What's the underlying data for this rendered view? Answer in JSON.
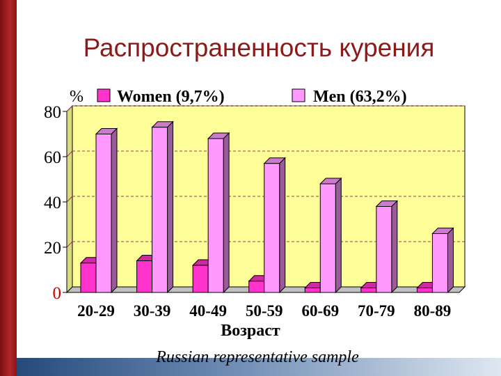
{
  "title": "Распространенность курения",
  "caption": "Russian representative sample",
  "colors": {
    "plot_bg": "#ffff99",
    "women": "#ff33cc",
    "men": "#ff99ff",
    "title": "#8b1a1a"
  },
  "chart_data": {
    "type": "bar",
    "title": "Распространенность курения",
    "xlabel": "Возраст",
    "ylabel": "%",
    "ylim": [
      0,
      80
    ],
    "yticks": [
      "0",
      "20",
      "40",
      "60",
      "80"
    ],
    "grid": true,
    "legend": "top",
    "categories": [
      "20-29",
      "30-39",
      "40-49",
      "50-59",
      "60-69",
      "70-79",
      "80-89"
    ],
    "series": [
      {
        "name": "Women (9,7%)",
        "values": [
          13,
          14,
          12,
          5,
          2,
          2,
          2
        ]
      },
      {
        "name": "Men (63,2%)",
        "values": [
          70,
          73,
          68,
          57,
          48,
          38,
          26
        ]
      }
    ]
  }
}
